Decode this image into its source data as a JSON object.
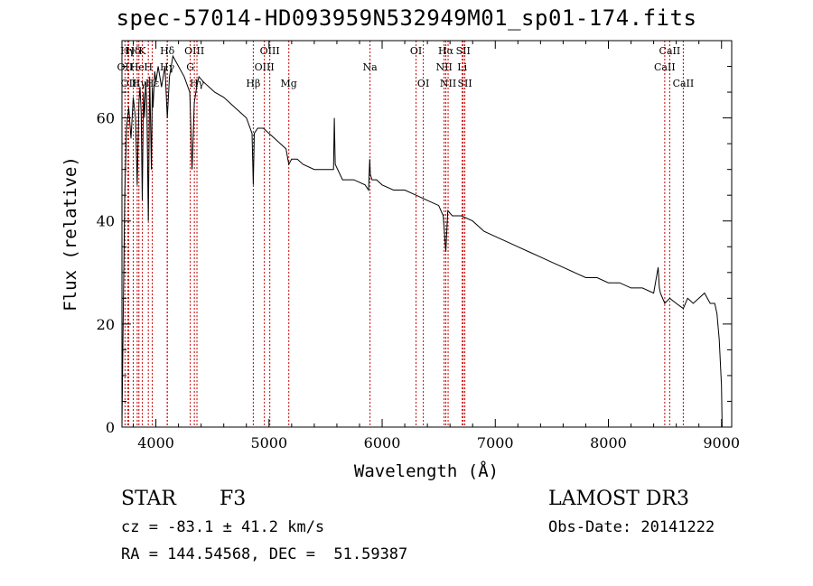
{
  "chart_data": {
    "type": "line",
    "title": "spec-57014-HD093959N532949M01_sp01-174.fits",
    "xlabel": "Wavelength (Å)",
    "ylabel": "Flux (relative)",
    "xlim": [
      3700,
      9090
    ],
    "ylim": [
      0,
      75
    ],
    "x_ticks": [
      4000,
      5000,
      6000,
      7000,
      8000,
      9000
    ],
    "y_ticks": [
      0,
      20,
      40,
      60
    ],
    "grid": false,
    "series": [
      {
        "name": "spectrum",
        "x": [
          3700,
          3710,
          3725,
          3740,
          3760,
          3780,
          3800,
          3820,
          3835,
          3850,
          3860,
          3870,
          3880,
          3890,
          3900,
          3910,
          3920,
          3933,
          3945,
          3955,
          3960,
          3968,
          3975,
          3990,
          4000,
          4020,
          4050,
          4080,
          4101,
          4120,
          4150,
          4200,
          4250,
          4300,
          4320,
          4340,
          4360,
          4380,
          4420,
          4470,
          4520,
          4600,
          4700,
          4800,
          4850,
          4861,
          4870,
          4900,
          4950,
          5000,
          5050,
          5100,
          5150,
          5175,
          5200,
          5250,
          5300,
          5400,
          5500,
          5570,
          5577,
          5585,
          5650,
          5750,
          5850,
          5880,
          5890,
          5896,
          5910,
          5950,
          6000,
          6100,
          6200,
          6300,
          6400,
          6500,
          6540,
          6563,
          6580,
          6620,
          6700,
          6800,
          6900,
          7000,
          7100,
          7200,
          7300,
          7400,
          7500,
          7600,
          7700,
          7800,
          7900,
          8000,
          8100,
          8200,
          8300,
          8400,
          8440,
          8450,
          8460,
          8498,
          8542,
          8600,
          8662,
          8700,
          8750,
          8800,
          8850,
          8900,
          8940,
          8960,
          8980,
          9000,
          9005
        ],
        "values": [
          0,
          20,
          45,
          58,
          62,
          56,
          64,
          60,
          47,
          63,
          66,
          61,
          44,
          65,
          60,
          67,
          62,
          40,
          68,
          57,
          50,
          66,
          62,
          69,
          67,
          70,
          66,
          70,
          60,
          68,
          72,
          70,
          68,
          65,
          50,
          63,
          66,
          68,
          67,
          66,
          65,
          64,
          62,
          60,
          57,
          47,
          57,
          58,
          58,
          57,
          56,
          55,
          54,
          51,
          52,
          52,
          51,
          50,
          50,
          50,
          60,
          51,
          48,
          48,
          47,
          46,
          52,
          49,
          48,
          48,
          47,
          46,
          46,
          45,
          44,
          43,
          41,
          34,
          42,
          41,
          41,
          40,
          38,
          37,
          36,
          35,
          34,
          33,
          32,
          31,
          30,
          29,
          29,
          28,
          28,
          27,
          27,
          26,
          31,
          27,
          26,
          24,
          25,
          24,
          23,
          25,
          24,
          25,
          26,
          24,
          24,
          22,
          17,
          8,
          0
        ]
      }
    ],
    "lines": [
      {
        "label": "OII",
        "wavelength": 3727,
        "row": 1
      },
      {
        "label": "Hγ",
        "wavelength": 3750,
        "row": 0
      },
      {
        "label": "OII",
        "wavelength": 3760,
        "row": 2
      },
      {
        "label": "Hδ",
        "wavelength": 3800,
        "row": 0
      },
      {
        "label": "He",
        "wavelength": 3835,
        "row": 1
      },
      {
        "label": "Hγ",
        "wavelength": 3850,
        "row": 2
      },
      {
        "label": "K",
        "wavelength": 3880,
        "row": 0
      },
      {
        "label": "H",
        "wavelength": 3933,
        "row": 1
      },
      {
        "label": "Hε",
        "wavelength": 3968,
        "row": 2
      },
      {
        "label": "Hδ",
        "wavelength": 4101,
        "row": 0
      },
      {
        "label": "Hγ",
        "wavelength": 4100,
        "row": 1
      },
      {
        "label": "G",
        "wavelength": 4304,
        "row": 1
      },
      {
        "label": "OIII",
        "wavelength": 4340,
        "row": 0
      },
      {
        "label": "Hγ",
        "wavelength": 4363,
        "row": 2
      },
      {
        "label": "Hβ",
        "wavelength": 4861,
        "row": 2
      },
      {
        "label": "OIII",
        "wavelength": 4959,
        "row": 1
      },
      {
        "label": "OIII",
        "wavelength": 5007,
        "row": 0
      },
      {
        "label": "Mg",
        "wavelength": 5175,
        "row": 2
      },
      {
        "label": "Na",
        "wavelength": 5893,
        "row": 1
      },
      {
        "label": "OI",
        "wavelength": 6300,
        "row": 0
      },
      {
        "label": "OI",
        "wavelength": 6364,
        "row": 2
      },
      {
        "label": "NII",
        "wavelength": 6548,
        "row": 1
      },
      {
        "label": "Hα",
        "wavelength": 6563,
        "row": 0
      },
      {
        "label": "NII",
        "wavelength": 6583,
        "row": 2
      },
      {
        "label": "SII",
        "wavelength": 6716,
        "row": 0
      },
      {
        "label": "Li",
        "wavelength": 6708,
        "row": 1
      },
      {
        "label": "SII",
        "wavelength": 6731,
        "row": 2
      },
      {
        "label": "CaII",
        "wavelength": 8498,
        "row": 1
      },
      {
        "label": "CaII",
        "wavelength": 8542,
        "row": 0
      },
      {
        "label": "CaII",
        "wavelength": 8662,
        "row": 2
      }
    ],
    "line_color": "#cc0000"
  },
  "info": {
    "object_class": "STAR",
    "subclass": "F3",
    "survey": "LAMOST DR3",
    "redshift": "cz = -83.1 ± 41.2 km/s",
    "obs_date": "Obs-Date: 20141222",
    "coords": "RA = 144.54568, DEC =  51.59387"
  }
}
